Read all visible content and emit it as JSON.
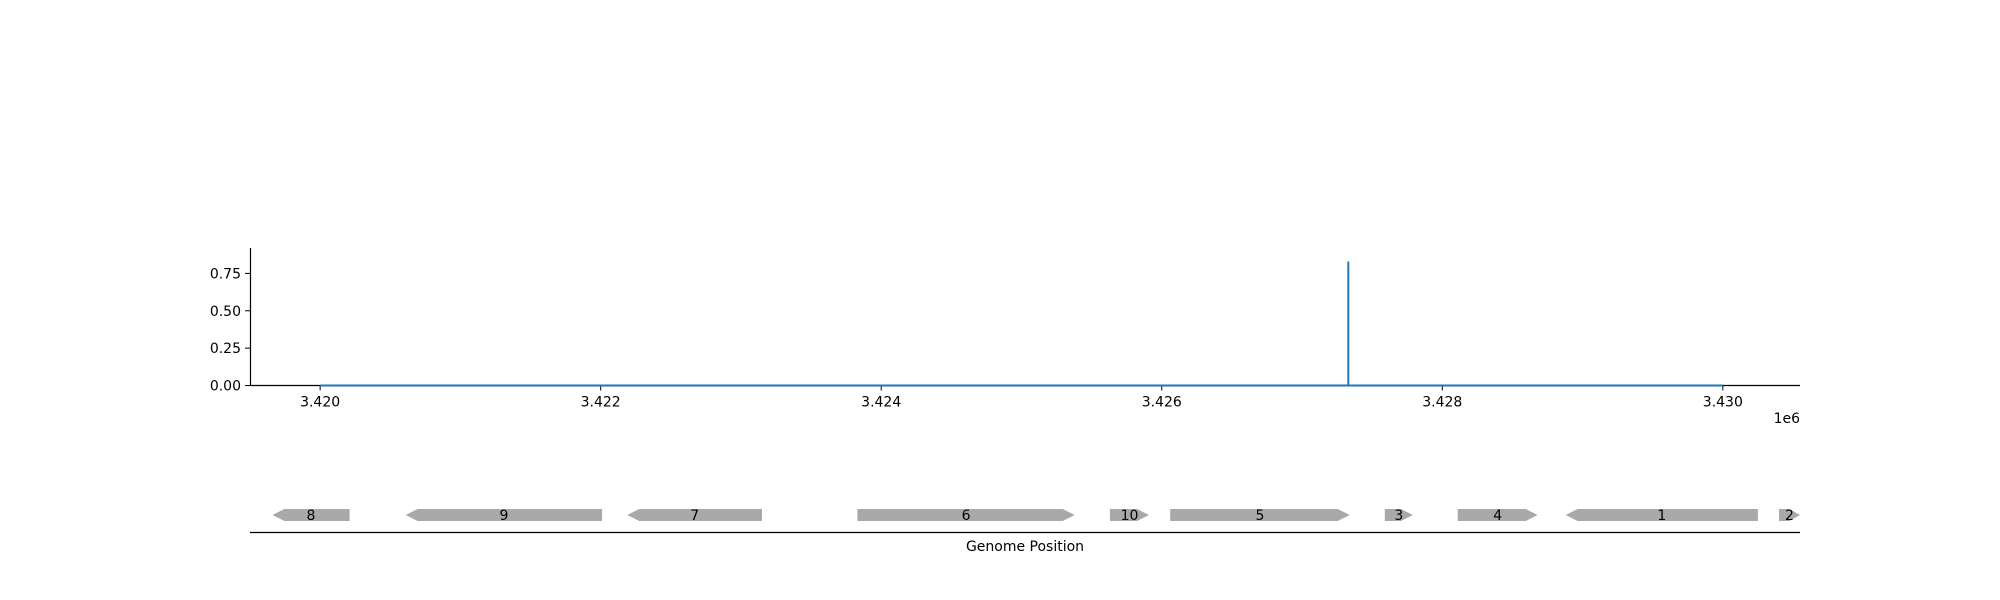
{
  "chart_data": [
    {
      "type": "line",
      "x": [
        3420000,
        3427330,
        3427330,
        3427330,
        3430000
      ],
      "y": [
        0.0,
        0.0,
        0.83,
        0.0,
        0.0
      ],
      "xlim": [
        3419500,
        3430550
      ],
      "ylim": [
        0,
        0.92
      ],
      "xticks": [
        3420000,
        3422000,
        3424000,
        3426000,
        3428000,
        3430000
      ],
      "xtick_labels": [
        "3.420",
        "3.422",
        "3.424",
        "3.426",
        "3.428",
        "3.430"
      ],
      "yticks": [
        0.0,
        0.25,
        0.5,
        0.75
      ],
      "ytick_labels": [
        "0.00",
        "0.25",
        "0.50",
        "0.75"
      ],
      "x_offset_label": "1e6",
      "line_color": "#1f77b4",
      "grid": false
    },
    {
      "type": "gene_track",
      "xlabel": "Genome Position",
      "feature_color": "#a9a9a9",
      "genes": [
        {
          "label": "8",
          "start": 3419660,
          "end": 3420210,
          "strand": -1
        },
        {
          "label": "9",
          "start": 3420610,
          "end": 3422010,
          "strand": -1
        },
        {
          "label": "7",
          "start": 3422190,
          "end": 3423150,
          "strand": -1
        },
        {
          "label": "6",
          "start": 3423830,
          "end": 3425380,
          "strand": 1
        },
        {
          "label": "10",
          "start": 3425630,
          "end": 3425910,
          "strand": 1
        },
        {
          "label": "5",
          "start": 3426060,
          "end": 3427340,
          "strand": 1
        },
        {
          "label": "3",
          "start": 3427590,
          "end": 3427790,
          "strand": 1
        },
        {
          "label": "4",
          "start": 3428110,
          "end": 3428680,
          "strand": 1
        },
        {
          "label": "1",
          "start": 3428880,
          "end": 3430250,
          "strand": -1
        },
        {
          "label": "2",
          "start": 3430400,
          "end": 3430560,
          "strand": 1
        }
      ]
    }
  ]
}
